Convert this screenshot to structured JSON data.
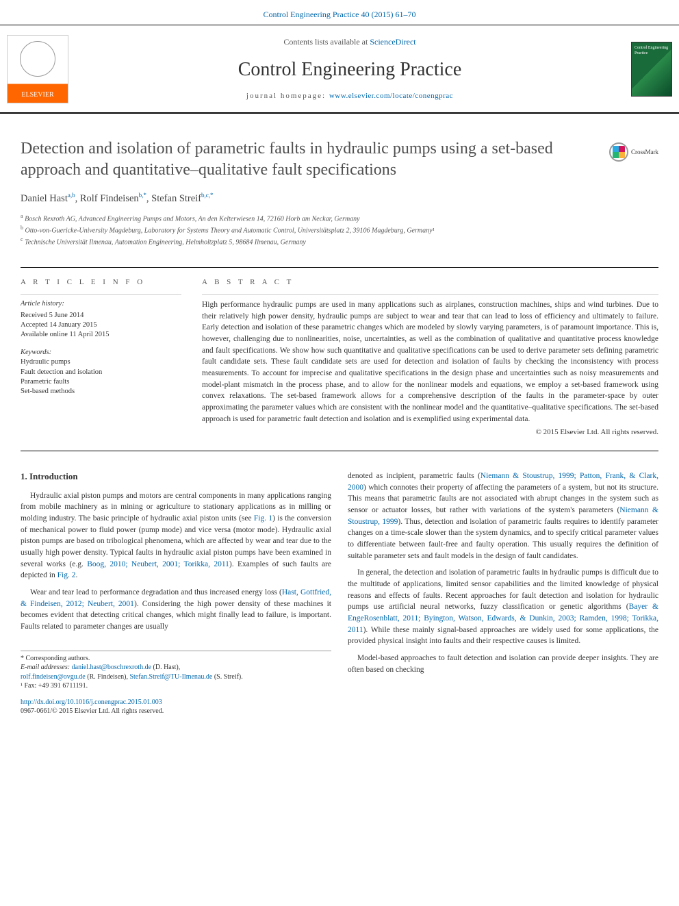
{
  "colors": {
    "link": "#0066aa",
    "text": "#333333",
    "title_gray": "#505050",
    "elsevier_orange": "#ff6600",
    "cover_green": "#1a6b3a",
    "background": "#ffffff",
    "rule": "#000000",
    "subrule": "#cccccc"
  },
  "journal_ref": "Control Engineering Practice 40 (2015) 61–70",
  "banner": {
    "lists_prefix": "Contents lists available at ",
    "lists_link": "ScienceDirect",
    "journal_name": "Control Engineering Practice",
    "homepage_prefix": "journal homepage: ",
    "homepage_url": "www.elsevier.com/locate/conengprac",
    "publisher_name": "ELSEVIER",
    "cover_label_top": "Control Engineering Practice"
  },
  "crossmark": {
    "label": "CrossMark"
  },
  "title": "Detection and isolation of parametric faults in hydraulic pumps using a set-based approach and quantitative–qualitative fault specifications",
  "authors_html": {
    "a1_name": "Daniel Hast",
    "a1_aff": "a,b",
    "a2_name": "Rolf Findeisen",
    "a2_aff": "b,*",
    "a3_name": "Stefan Streif",
    "a3_aff": "b,c,*"
  },
  "affiliations": {
    "a": "Bosch Rexroth AG, Advanced Engineering Pumps and Motors, An den Kelterwiesen 14, 72160 Horb am Neckar, Germany",
    "b": "Otto-von-Guericke-University Magdeburg, Laboratory for Systems Theory and Automatic Control, Universitätsplatz 2, 39106 Magdeburg, Germany¹",
    "c": "Technische Universität Ilmenau, Automation Engineering, Helmholtzplatz 5, 98684 Ilmenau, Germany"
  },
  "info_label": "A R T I C L E  I N F O",
  "abstract_label": "A B S T R A C T",
  "history": {
    "heading": "Article history:",
    "received": "Received 5 June 2014",
    "accepted": "Accepted 14 January 2015",
    "online": "Available online 11 April 2015"
  },
  "keywords": {
    "heading": "Keywords:",
    "items": [
      "Hydraulic pumps",
      "Fault detection and isolation",
      "Parametric faults",
      "Set-based methods"
    ]
  },
  "abstract": "High performance hydraulic pumps are used in many applications such as airplanes, construction machines, ships and wind turbines. Due to their relatively high power density, hydraulic pumps are subject to wear and tear that can lead to loss of efficiency and ultimately to failure. Early detection and isolation of these parametric changes which are modeled by slowly varying parameters, is of paramount importance. This is, however, challenging due to nonlinearities, noise, uncertainties, as well as the combination of qualitative and quantitative process knowledge and fault specifications. We show how such quantitative and qualitative specifications can be used to derive parameter sets defining parametric fault candidate sets. These fault candidate sets are used for detection and isolation of faults by checking the inconsistency with process measurements. To account for imprecise and qualitative specifications in the design phase and uncertainties such as noisy measurements and model-plant mismatch in the process phase, and to allow for the nonlinear models and equations, we employ a set-based framework using convex relaxations. The set-based framework allows for a comprehensive description of the faults in the parameter-space by outer approximating the parameter values which are consistent with the nonlinear model and the quantitative–qualitative specifications. The set-based approach is used for parametric fault detection and isolation and is exemplified using experimental data.",
  "copyright": "© 2015 Elsevier Ltd. All rights reserved.",
  "section1_heading": "1. Introduction",
  "para_left_1_pre": "Hydraulic axial piston pumps and motors are central components in many applications ranging from mobile machinery as in mining or agriculture to stationary applications as in milling or molding industry. The basic principle of hydraulic axial piston units (see ",
  "para_left_1_link1": "Fig. 1",
  "para_left_1_mid": ") is the conversion of mechanical power to fluid power (pump mode) and vice versa (motor mode). Hydraulic axial piston pumps are based on tribological phenomena, which are affected by wear and tear due to the usually high power density. Typical faults in hydraulic axial piston pumps have been examined in several works (e.g. ",
  "para_left_1_link2": "Boog, 2010; Neubert, 2001; Torikka, 2011",
  "para_left_1_post": "). Examples of such faults are depicted in ",
  "para_left_1_link3": "Fig. 2",
  "para_left_1_end": ".",
  "para_left_2_pre": "Wear and tear lead to performance degradation and thus increased energy loss (",
  "para_left_2_link1": "Hast, Gottfried, & Findeisen, 2012; Neubert, 2001",
  "para_left_2_post": "). Considering the high power density of these machines it becomes evident that detecting critical changes, which might finally lead to failure, is important. Faults related to parameter changes are usually",
  "para_right_1_pre": "denoted as incipient, parametric faults (",
  "para_right_1_link1": "Niemann & Stoustrup, 1999; Patton, Frank, & Clark, 2000",
  "para_right_1_mid": ") which connotes their property of affecting the parameters of a system, but not its structure. This means that parametric faults are not associated with abrupt changes in the system such as sensor or actuator losses, but rather with variations of the system's parameters (",
  "para_right_1_link2": "Niemann & Stoustrup, 1999",
  "para_right_1_post": "). Thus, detection and isolation of parametric faults requires to identify parameter changes on a time-scale slower than the system dynamics, and to specify critical parameter values to differentiate between fault-free and faulty operation. This usually requires the definition of suitable parameter sets and fault models in the design of fault candidates.",
  "para_right_2_pre": "In general, the detection and isolation of parametric faults in hydraulic pumps is difficult due to the multitude of applications, limited sensor capabilities and the limited knowledge of physical reasons and effects of faults. Recent approaches for fault detection and isolation for hydraulic pumps use artificial neural networks, fuzzy classification or genetic algorithms (",
  "para_right_2_link1": "Bayer & EngeRosenblatt, 2011; Byington, Watson, Edwards, & Dunkin, 2003; Ramden, 1998; Torikka, 2011",
  "para_right_2_post": "). While these mainly signal-based approaches are widely used for some applications, the provided physical insight into faults and their respective causes is limited.",
  "para_right_3": "Model-based approaches to fault detection and isolation can provide deeper insights. They are often based on checking",
  "footnotes": {
    "corr_label": "* Corresponding authors.",
    "email_label": "E-mail addresses: ",
    "e1": "daniel.hast@boschrexroth.de",
    "e1n": " (D. Hast),",
    "e2": "rolf.findeisen@ovgu.de",
    "e2n": " (R. Findeisen), ",
    "e3": "Stefan.Streif@TU-Ilmenau.de",
    "e3n": " (S. Streif).",
    "fax": "¹ Fax: +49 391 6711191."
  },
  "doi": {
    "url": "http://dx.doi.org/10.1016/j.conengprac.2015.01.003",
    "issn_line": "0967-0661/© 2015 Elsevier Ltd. All rights reserved."
  }
}
